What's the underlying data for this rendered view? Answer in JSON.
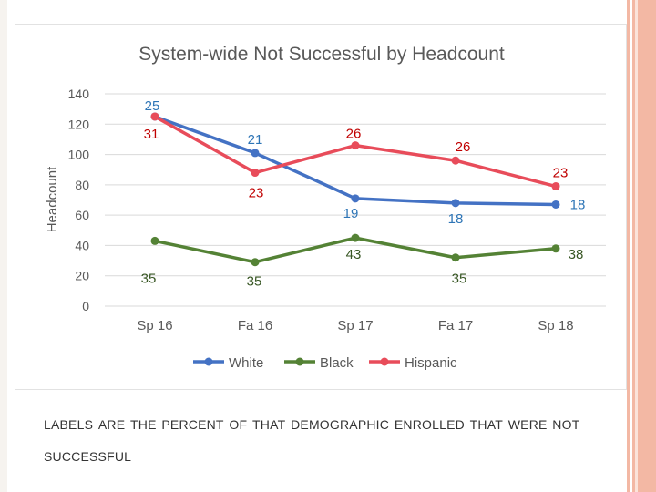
{
  "caption": "LABELS ARE THE PERCENT OF THAT DEMOGRAPHIC ENROLLED THAT WERE NOT SUCCESSFUL",
  "chart_data": {
    "type": "line",
    "title": "System-wide Not Successful by Headcount",
    "ylabel": "Headcount",
    "xlabel": "",
    "ylim": [
      0,
      140
    ],
    "yticks": [
      0,
      20,
      40,
      60,
      80,
      100,
      120,
      140
    ],
    "grid": true,
    "legend": "bottom",
    "categories": [
      "Sp 16",
      "Fa 16",
      "Sp 17",
      "Fa 17",
      "Sp 18"
    ],
    "series": [
      {
        "name": "White",
        "color": "#4472c4",
        "labelColor": "#2e75b6",
        "values": [
          125,
          101,
          71,
          68,
          67
        ],
        "labels": [
          "25",
          "21",
          "19",
          "18",
          "18"
        ]
      },
      {
        "name": "Black",
        "color": "#548235",
        "labelColor": "#375623",
        "values": [
          43,
          29,
          45,
          32,
          38
        ],
        "labels": [
          "35",
          "35",
          "43",
          "35",
          "38"
        ]
      },
      {
        "name": "Hispanic",
        "color": "#e84c5a",
        "labelColor": "#c00000",
        "values": [
          125,
          88,
          106,
          96,
          79
        ],
        "labels": [
          "31",
          "23",
          "26",
          "26",
          "23"
        ]
      }
    ]
  }
}
